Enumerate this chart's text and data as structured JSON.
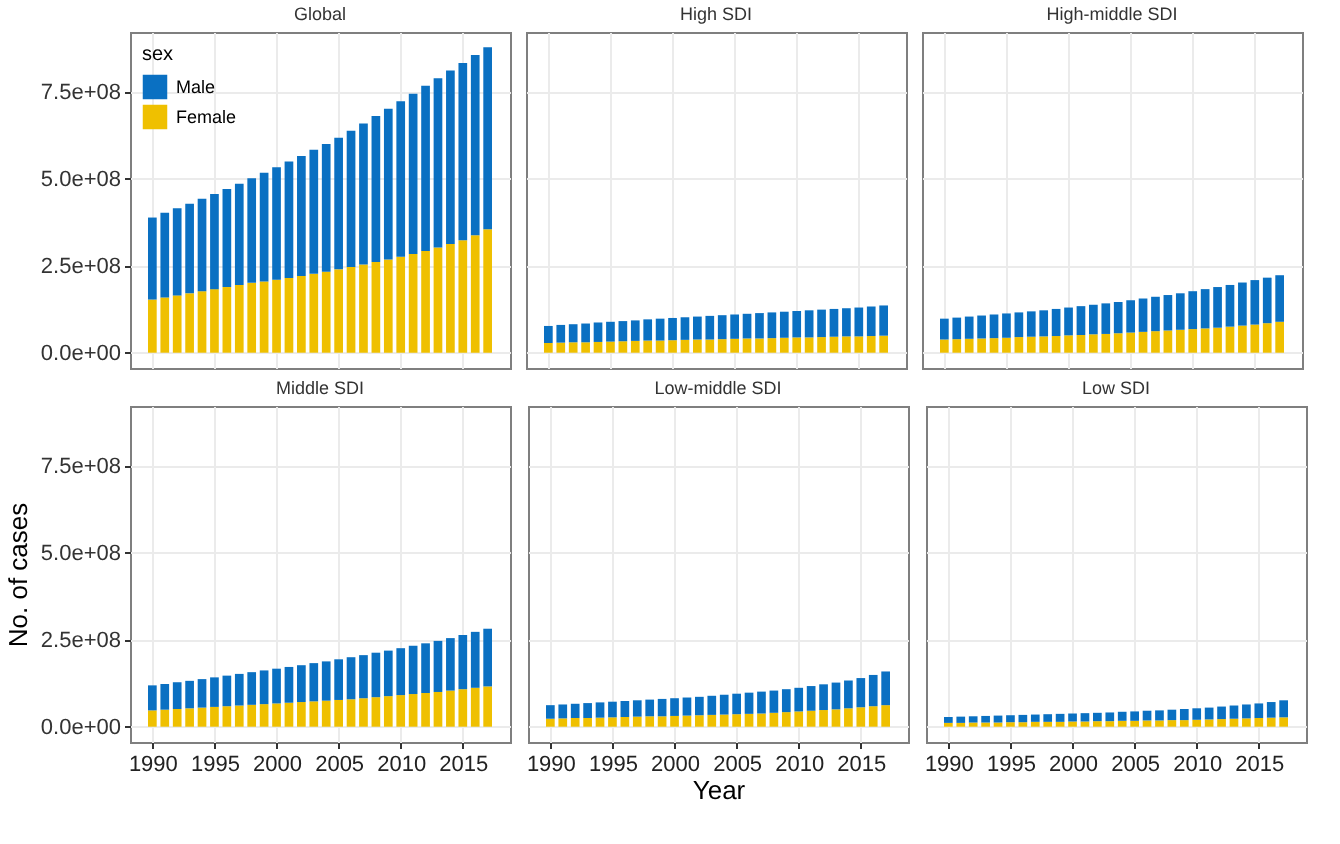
{
  "chart_data": [
    {
      "type": "bar",
      "title": "Global",
      "stacked": true,
      "legend": "top left",
      "legend_title": "sex",
      "grid": true,
      "tick_labels": "y",
      "xlim": [
        1988.2,
        2018.8
      ],
      "xticks": [
        1990,
        1995,
        2000,
        2005,
        2010,
        2015
      ],
      "ylim": [
        -44000000.0,
        923000000.0
      ],
      "yticks": [
        {
          "value": 0,
          "label": "0.0e+00"
        },
        {
          "value": 250000000.0,
          "label": "2.5e+08"
        },
        {
          "value": 500000000.0,
          "label": "5.0e+08"
        },
        {
          "value": 750000000.0,
          "label": "7.5e+08"
        }
      ],
      "x": [
        1990,
        1991,
        1992,
        1993,
        1994,
        1995,
        1996,
        1997,
        1998,
        1999,
        2000,
        2001,
        2002,
        2003,
        2004,
        2005,
        2006,
        2007,
        2008,
        2009,
        2010,
        2011,
        2012,
        2013,
        2014,
        2015,
        2016,
        2017
      ],
      "series": [
        {
          "name": "Female",
          "color": "#efc000",
          "values": [
            153000000.0,
            159000000.0,
            165000000.0,
            171000000.0,
            177000000.0,
            183000000.0,
            189000000.0,
            195000000.0,
            201000000.0,
            205000000.0,
            210000000.0,
            215000000.0,
            221000000.0,
            227000000.0,
            233000000.0,
            240000000.0,
            247000000.0,
            254000000.0,
            261000000.0,
            268000000.0,
            276000000.0,
            284000000.0,
            293000000.0,
            303000000.0,
            313000000.0,
            324000000.0,
            338000000.0,
            355000000.0
          ]
        },
        {
          "name": "Male",
          "color": "#0a70c2",
          "values": [
            236000000.0,
            244000000.0,
            251000000.0,
            258000000.0,
            266000000.0,
            274000000.0,
            282000000.0,
            291000000.0,
            301000000.0,
            313000000.0,
            324000000.0,
            335000000.0,
            345000000.0,
            357000000.0,
            368000000.0,
            379000000.0,
            392000000.0,
            406000000.0,
            420000000.0,
            434000000.0,
            448000000.0,
            461000000.0,
            475000000.0,
            487000000.0,
            499000000.0,
            510000000.0,
            519000000.0,
            524000000.0
          ]
        }
      ]
    },
    {
      "type": "bar",
      "title": "High SDI",
      "stacked": true,
      "grid": true,
      "tick_labels": false,
      "xlim": [
        1988.2,
        2018.8
      ],
      "xticks": [
        1990,
        1995,
        2000,
        2005,
        2010,
        2015
      ],
      "ylim": [
        -44000000.0,
        923000000.0
      ],
      "yticks": [
        {
          "value": 0,
          "label": "0.0e+00"
        },
        {
          "value": 250000000.0,
          "label": "2.5e+08"
        },
        {
          "value": 500000000.0,
          "label": "5.0e+08"
        },
        {
          "value": 750000000.0,
          "label": "7.5e+08"
        }
      ],
      "x": [
        1990,
        1991,
        1992,
        1993,
        1994,
        1995,
        1996,
        1997,
        1998,
        1999,
        2000,
        2001,
        2002,
        2003,
        2004,
        2005,
        2006,
        2007,
        2008,
        2009,
        2010,
        2011,
        2012,
        2013,
        2014,
        2015,
        2016,
        2017
      ],
      "series": [
        {
          "name": "Female",
          "color": "#efc000",
          "values": [
            28000000.0,
            29000000.0,
            30000000.0,
            30000000.0,
            31000000.0,
            32000000.0,
            33000000.0,
            34000000.0,
            35000000.0,
            35000000.0,
            36000000.0,
            37000000.0,
            38000000.0,
            38000000.0,
            39000000.0,
            40000000.0,
            41000000.0,
            41000000.0,
            42000000.0,
            43000000.0,
            44000000.0,
            44000000.0,
            45000000.0,
            46000000.0,
            47000000.0,
            47000000.0,
            48000000.0,
            49000000.0
          ]
        },
        {
          "name": "Male",
          "color": "#0a70c2",
          "values": [
            49000000.0,
            51000000.0,
            52000000.0,
            54000000.0,
            56000000.0,
            57000000.0,
            58000000.0,
            59000000.0,
            61000000.0,
            63000000.0,
            64000000.0,
            65000000.0,
            66000000.0,
            68000000.0,
            69000000.0,
            70000000.0,
            71000000.0,
            73000000.0,
            74000000.0,
            75000000.0,
            76000000.0,
            78000000.0,
            79000000.0,
            80000000.0,
            81000000.0,
            83000000.0,
            85000000.0,
            87000000.0
          ]
        }
      ]
    },
    {
      "type": "bar",
      "title": "High-middle SDI",
      "stacked": true,
      "grid": true,
      "tick_labels": false,
      "xlim": [
        1988.2,
        2018.8
      ],
      "xticks": [
        1990,
        1995,
        2000,
        2005,
        2010,
        2015
      ],
      "ylim": [
        -44000000.0,
        923000000.0
      ],
      "yticks": [
        {
          "value": 0,
          "label": "0.0e+00"
        },
        {
          "value": 250000000.0,
          "label": "2.5e+08"
        },
        {
          "value": 500000000.0,
          "label": "5.0e+08"
        },
        {
          "value": 750000000.0,
          "label": "7.5e+08"
        }
      ],
      "x": [
        1990,
        1991,
        1992,
        1993,
        1994,
        1995,
        1996,
        1997,
        1998,
        1999,
        2000,
        2001,
        2002,
        2003,
        2004,
        2005,
        2006,
        2007,
        2008,
        2009,
        2010,
        2011,
        2012,
        2013,
        2014,
        2015,
        2016,
        2017
      ],
      "series": [
        {
          "name": "Female",
          "color": "#efc000",
          "values": [
            38000000.0,
            39000000.0,
            40000000.0,
            41000000.0,
            42000000.0,
            43000000.0,
            45000000.0,
            46000000.0,
            47000000.0,
            48000000.0,
            50000000.0,
            51000000.0,
            53000000.0,
            54000000.0,
            56000000.0,
            58000000.0,
            60000000.0,
            62000000.0,
            64000000.0,
            66000000.0,
            68000000.0,
            70000000.0,
            72000000.0,
            75000000.0,
            78000000.0,
            81000000.0,
            85000000.0,
            89000000.0
          ]
        },
        {
          "name": "Male",
          "color": "#0a70c2",
          "values": [
            60000000.0,
            62000000.0,
            64000000.0,
            66000000.0,
            68000000.0,
            70000000.0,
            71000000.0,
            73000000.0,
            75000000.0,
            78000000.0,
            80000000.0,
            83000000.0,
            85000000.0,
            88000000.0,
            90000000.0,
            93000000.0,
            96000000.0,
            99000000.0,
            102000000.0,
            105000000.0,
            109000000.0,
            113000000.0,
            117000000.0,
            120000000.0,
            124000000.0,
            128000000.0,
            131000000.0,
            134000000.0
          ]
        }
      ]
    },
    {
      "type": "bar",
      "title": "Middle SDI",
      "ylabel": "No. of cases",
      "stacked": true,
      "grid": true,
      "xlim": [
        1988.2,
        2018.8
      ],
      "xticks": [
        1990,
        1995,
        2000,
        2005,
        2010,
        2015
      ],
      "ylim": [
        -44000000.0,
        923000000.0
      ],
      "yticks": [
        {
          "value": 0,
          "label": "0.0e+00"
        },
        {
          "value": 250000000.0,
          "label": "2.5e+08"
        },
        {
          "value": 500000000.0,
          "label": "5.0e+08"
        },
        {
          "value": 750000000.0,
          "label": "7.5e+08"
        }
      ],
      "x": [
        1990,
        1991,
        1992,
        1993,
        1994,
        1995,
        1996,
        1997,
        1998,
        1999,
        2000,
        2001,
        2002,
        2003,
        2004,
        2005,
        2006,
        2007,
        2008,
        2009,
        2010,
        2011,
        2012,
        2013,
        2014,
        2015,
        2016,
        2017
      ],
      "series": [
        {
          "name": "Female",
          "color": "#efc000",
          "values": [
            47000000.0,
            49000000.0,
            51000000.0,
            53000000.0,
            55000000.0,
            57000000.0,
            59000000.0,
            61000000.0,
            63000000.0,
            65000000.0,
            67000000.0,
            69000000.0,
            71000000.0,
            73000000.0,
            75000000.0,
            77000000.0,
            79000000.0,
            82000000.0,
            85000000.0,
            88000000.0,
            91000000.0,
            94000000.0,
            97000000.0,
            100000000.0,
            104000000.0,
            108000000.0,
            112000000.0,
            116000000.0
          ]
        },
        {
          "name": "Male",
          "color": "#0a70c2",
          "values": [
            72000000.0,
            74000000.0,
            77000000.0,
            79000000.0,
            82000000.0,
            85000000.0,
            88000000.0,
            91000000.0,
            94000000.0,
            97000000.0,
            100000000.0,
            103000000.0,
            106000000.0,
            110000000.0,
            113000000.0,
            117000000.0,
            121000000.0,
            124000000.0,
            128000000.0,
            131000000.0,
            135000000.0,
            139000000.0,
            143000000.0,
            147000000.0,
            151000000.0,
            156000000.0,
            161000000.0,
            166000000.0
          ]
        }
      ]
    },
    {
      "type": "bar",
      "title": "Low-middle SDI",
      "xlabel": "Year",
      "stacked": true,
      "grid": true,
      "tick_labels": "x",
      "xlim": [
        1988.2,
        2018.8
      ],
      "xticks": [
        1990,
        1995,
        2000,
        2005,
        2010,
        2015
      ],
      "ylim": [
        -44000000.0,
        923000000.0
      ],
      "yticks": [
        {
          "value": 0,
          "label": "0.0e+00"
        },
        {
          "value": 250000000.0,
          "label": "2.5e+08"
        },
        {
          "value": 500000000.0,
          "label": "5.0e+08"
        },
        {
          "value": 750000000.0,
          "label": "7.5e+08"
        }
      ],
      "x": [
        1990,
        1991,
        1992,
        1993,
        1994,
        1995,
        1996,
        1997,
        1998,
        1999,
        2000,
        2001,
        2002,
        2003,
        2004,
        2005,
        2006,
        2007,
        2008,
        2009,
        2010,
        2011,
        2012,
        2013,
        2014,
        2015,
        2016,
        2017
      ],
      "series": [
        {
          "name": "Female",
          "color": "#efc000",
          "values": [
            23000000.0,
            24000000.0,
            25000000.0,
            25000000.0,
            26000000.0,
            27000000.0,
            28000000.0,
            29000000.0,
            30000000.0,
            30000000.0,
            31000000.0,
            32000000.0,
            33000000.0,
            34000000.0,
            35000000.0,
            36000000.0,
            37000000.0,
            38000000.0,
            40000000.0,
            42000000.0,
            44000000.0,
            46000000.0,
            48000000.0,
            50000000.0,
            53000000.0,
            56000000.0,
            59000000.0,
            62000000.0
          ]
        },
        {
          "name": "Male",
          "color": "#0a70c2",
          "values": [
            39000000.0,
            40000000.0,
            41000000.0,
            43000000.0,
            44000000.0,
            45000000.0,
            46000000.0,
            47000000.0,
            48000000.0,
            50000000.0,
            51000000.0,
            52000000.0,
            53000000.0,
            55000000.0,
            57000000.0,
            59000000.0,
            61000000.0,
            63000000.0,
            64000000.0,
            66000000.0,
            68000000.0,
            71000000.0,
            74000000.0,
            77000000.0,
            80000000.0,
            84000000.0,
            90000000.0,
            97000000.0
          ]
        }
      ]
    },
    {
      "type": "bar",
      "title": "Low SDI",
      "stacked": true,
      "grid": true,
      "tick_labels": "x",
      "xlim": [
        1988.2,
        2018.8
      ],
      "xticks": [
        1990,
        1995,
        2000,
        2005,
        2010,
        2015
      ],
      "ylim": [
        -44000000.0,
        923000000.0
      ],
      "yticks": [
        {
          "value": 0,
          "label": "0.0e+00"
        },
        {
          "value": 250000000.0,
          "label": "2.5e+08"
        },
        {
          "value": 500000000.0,
          "label": "5.0e+08"
        },
        {
          "value": 750000000.0,
          "label": "7.5e+08"
        }
      ],
      "x": [
        1990,
        1991,
        1992,
        1993,
        1994,
        1995,
        1996,
        1997,
        1998,
        1999,
        2000,
        2001,
        2002,
        2003,
        2004,
        2005,
        2006,
        2007,
        2008,
        2009,
        2010,
        2011,
        2012,
        2013,
        2014,
        2015,
        2016,
        2017
      ],
      "series": [
        {
          "name": "Female",
          "color": "#efc000",
          "values": [
            11000000.0,
            11000000.0,
            12000000.0,
            12000000.0,
            12000000.0,
            13000000.0,
            13000000.0,
            14000000.0,
            14000000.0,
            14000000.0,
            15000000.0,
            15000000.0,
            16000000.0,
            16000000.0,
            17000000.0,
            17000000.0,
            18000000.0,
            18000000.0,
            19000000.0,
            19000000.0,
            20000000.0,
            21000000.0,
            22000000.0,
            23000000.0,
            24000000.0,
            25000000.0,
            26000000.0,
            27000000.0
          ]
        },
        {
          "name": "Male",
          "color": "#0a70c2",
          "values": [
            17000000.0,
            18000000.0,
            18000000.0,
            19000000.0,
            20000000.0,
            20000000.0,
            21000000.0,
            21000000.0,
            22000000.0,
            23000000.0,
            23000000.0,
            24000000.0,
            24000000.0,
            25000000.0,
            26000000.0,
            27000000.0,
            28000000.0,
            29000000.0,
            30000000.0,
            32000000.0,
            33000000.0,
            34000000.0,
            36000000.0,
            38000000.0,
            40000000.0,
            42000000.0,
            45000000.0,
            49000000.0
          ]
        }
      ]
    }
  ]
}
